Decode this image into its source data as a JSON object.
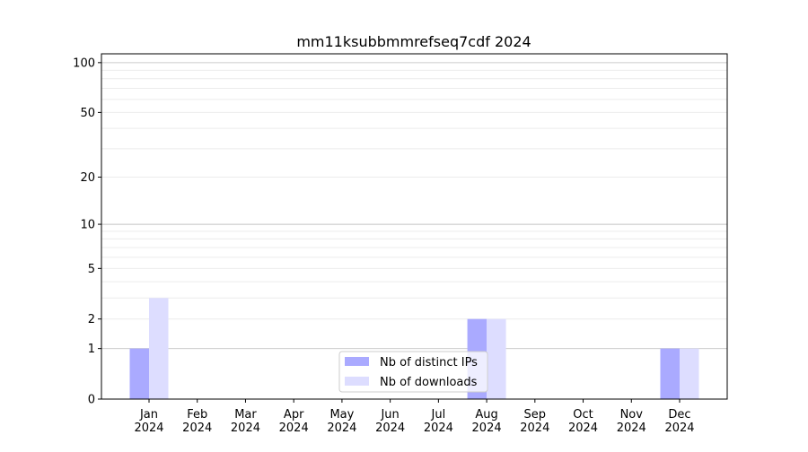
{
  "chart_data": {
    "type": "bar",
    "title": "mm11ksubbmmrefseq7cdf 2024",
    "xlabel": "",
    "ylabel": "",
    "yscale": "log(1+y)",
    "ylim": [
      0,
      113
    ],
    "yticks": [
      0,
      1,
      2,
      5,
      10,
      20,
      50,
      100
    ],
    "grid": true,
    "legend_position": "bottom-center",
    "categories": [
      "Jan\n2024",
      "Feb\n2024",
      "Mar\n2024",
      "Apr\n2024",
      "May\n2024",
      "Jun\n2024",
      "Jul\n2024",
      "Aug\n2024",
      "Sep\n2024",
      "Oct\n2024",
      "Nov\n2024",
      "Dec\n2024"
    ],
    "series": [
      {
        "name": "Nb of distinct IPs",
        "color": "#aaaaff",
        "values": [
          1,
          0,
          0,
          0,
          0,
          0,
          0,
          2,
          0,
          0,
          0,
          1
        ]
      },
      {
        "name": "Nb of downloads",
        "color": "#ddddff",
        "values": [
          3,
          0,
          0,
          0,
          0,
          0,
          0,
          2,
          0,
          0,
          0,
          1
        ]
      }
    ]
  }
}
